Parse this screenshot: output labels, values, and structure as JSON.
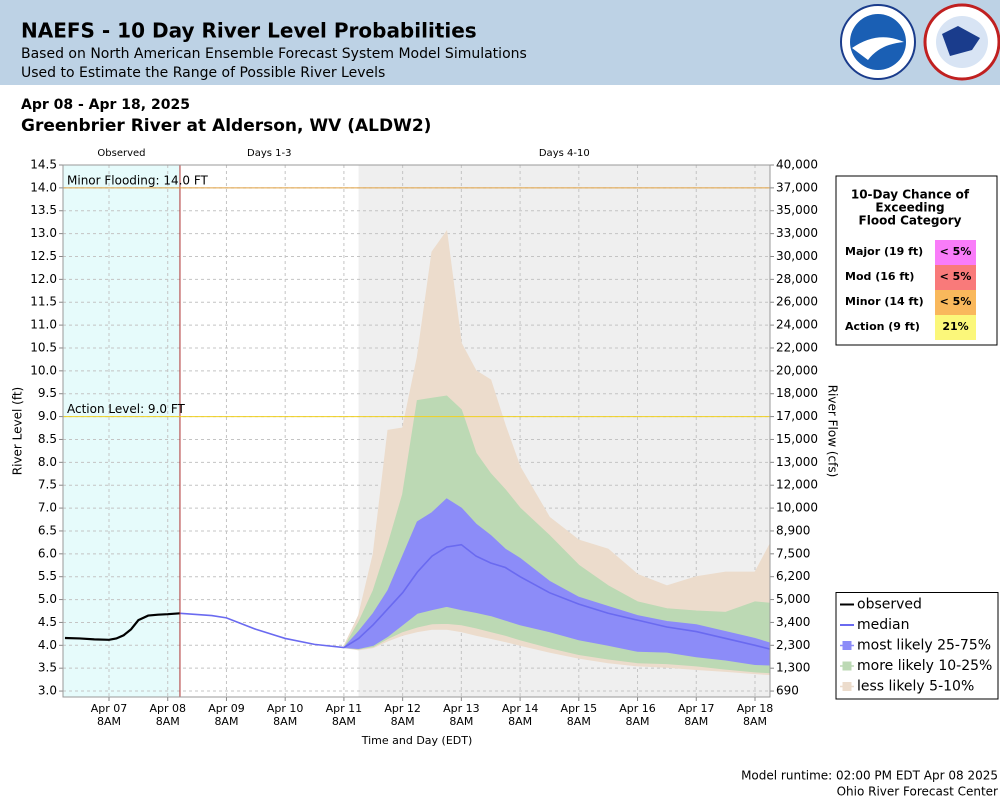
{
  "header": {
    "title": "NAEFS - 10 Day River Level Probabilities",
    "subtitle": "Based on North American Ensemble Forecast System Model Simulations",
    "subtitle2": "Used to Estimate the Range of Possible River Levels"
  },
  "date_range": "Apr 08 - Apr 18, 2025",
  "station": "Greenbrier River at Alderson, WV (ALDW2)",
  "chart_data": {
    "type": "line",
    "xlabel": "Time and Day (EDT)",
    "ylabel": "River Level (ft)",
    "y2label": "River Flow (cfs)",
    "xlim": [
      "2025-04-06T13:12",
      "2025-04-18T14:08"
    ],
    "xticks": [
      {
        "value": "2025-04-07T08:00",
        "label": [
          "Apr 07",
          "8AM"
        ]
      },
      {
        "value": "2025-04-08T08:00",
        "label": [
          "Apr 08",
          "8AM"
        ]
      },
      {
        "value": "2025-04-09T08:00",
        "label": [
          "Apr 09",
          "8AM"
        ]
      },
      {
        "value": "2025-04-10T08:00",
        "label": [
          "Apr 10",
          "8AM"
        ]
      },
      {
        "value": "2025-04-11T08:00",
        "label": [
          "Apr 11",
          "8AM"
        ]
      },
      {
        "value": "2025-04-12T08:00",
        "label": [
          "Apr 12",
          "8AM"
        ]
      },
      {
        "value": "2025-04-13T08:00",
        "label": [
          "Apr 13",
          "8AM"
        ]
      },
      {
        "value": "2025-04-14T08:00",
        "label": [
          "Apr 14",
          "8AM"
        ]
      },
      {
        "value": "2025-04-15T08:00",
        "label": [
          "Apr 15",
          "8AM"
        ]
      },
      {
        "value": "2025-04-16T08:00",
        "label": [
          "Apr 16",
          "8AM"
        ]
      },
      {
        "value": "2025-04-17T08:00",
        "label": [
          "Apr 17",
          "8AM"
        ]
      },
      {
        "value": "2025-04-18T08:00",
        "label": [
          "Apr 18",
          "8AM"
        ]
      }
    ],
    "ylim": [
      2.87,
      14.5
    ],
    "yticks": [
      {
        "value": 3,
        "label": "3.0"
      },
      3.5,
      {
        "value": 4,
        "label": "4.0"
      },
      4.5,
      {
        "value": 5,
        "label": "5.0"
      },
      5.5,
      {
        "value": 6,
        "label": "6.0"
      },
      6.5,
      {
        "value": 7,
        "label": "7.0"
      },
      7.5,
      {
        "value": 8,
        "label": "8.0"
      },
      8.5,
      {
        "value": 9,
        "label": "9.0"
      },
      9.5,
      {
        "value": 10,
        "label": "10.0"
      },
      10.5,
      {
        "value": 11,
        "label": "11.0"
      },
      11.5,
      {
        "value": 12,
        "label": "12.0"
      },
      12.5,
      {
        "value": 13,
        "label": "13.0"
      },
      13.5,
      {
        "value": 14,
        "label": "14.0"
      },
      14.5
    ],
    "y2ticks": [
      690,
      {
        "value": 1300,
        "label": "1,300"
      },
      {
        "value": 2300,
        "label": "2,300"
      },
      {
        "value": 3400,
        "label": "3,400"
      },
      {
        "value": 5000,
        "label": "5,000"
      },
      {
        "value": 6200,
        "label": "6,200"
      },
      {
        "value": 7500,
        "label": "7,500"
      },
      {
        "value": 8900,
        "label": "8,900"
      },
      {
        "value": 10000,
        "label": "10,000"
      },
      {
        "value": 12000,
        "label": "12,000"
      },
      {
        "value": 13000,
        "label": "13,000"
      },
      {
        "value": 15000,
        "label": "15,000"
      },
      {
        "value": 17000,
        "label": "17,000"
      },
      {
        "value": 18000,
        "label": "18,000"
      },
      {
        "value": 20000,
        "label": "20,000"
      },
      {
        "value": 22000,
        "label": "22,000"
      },
      {
        "value": 24000,
        "label": "24,000"
      },
      {
        "value": 26000,
        "label": "26,000"
      },
      {
        "value": 28000,
        "label": "28,000"
      },
      {
        "value": 30000,
        "label": "30,000"
      },
      {
        "value": 33000,
        "label": "33,000"
      },
      {
        "value": 35000,
        "label": "35,000"
      },
      {
        "value": 37000,
        "label": "37,000"
      },
      {
        "value": 40000,
        "label": "40,000"
      }
    ],
    "grid": true,
    "legend": "lower right",
    "regions": [
      {
        "label": "Observed",
        "end": "2025-04-08T13:00",
        "color": "#e6fbfb"
      },
      {
        "label": "Days 1-3",
        "end": "2025-04-11T14:00",
        "color": "#ffffff"
      },
      {
        "label": "Days 4-10",
        "color": "#efefef"
      }
    ],
    "now_line_color": "#b03030",
    "thresholds": [
      {
        "label": "Minor Flooding: 14.0 FT",
        "value": 14,
        "color": "#e0a040"
      },
      {
        "label": "Action Level: 9.0 FT",
        "value": 9,
        "color": "#f0d020"
      }
    ],
    "x": [
      "2025-04-06T14:00",
      "2025-04-06T20:00",
      "2025-04-07T02:00",
      "2025-04-07T08:00",
      "2025-04-07T11:00",
      "2025-04-07T14:00",
      "2025-04-07T17:00",
      "2025-04-07T20:00",
      "2025-04-08T00:00",
      "2025-04-08T04:00",
      "2025-04-08T08:00",
      "2025-04-08T13:00",
      "2025-04-09T02:00",
      "2025-04-09T08:00",
      "2025-04-09T20:00",
      "2025-04-10T08:00",
      "2025-04-10T20:00",
      "2025-04-11T08:00",
      "2025-04-11T14:00",
      "2025-04-11T20:00",
      "2025-04-12T02:00",
      "2025-04-12T08:00",
      "2025-04-12T14:00",
      "2025-04-12T20:00",
      "2025-04-13T02:00",
      "2025-04-13T08:00",
      "2025-04-13T14:00",
      "2025-04-13T20:00",
      "2025-04-14T02:00",
      "2025-04-14T08:00",
      "2025-04-14T20:00",
      "2025-04-15T08:00",
      "2025-04-15T20:00",
      "2025-04-16T08:00",
      "2025-04-16T20:00",
      "2025-04-17T08:00",
      "2025-04-17T20:00",
      "2025-04-18T08:00",
      "2025-04-18T14:00"
    ],
    "series": [
      {
        "name": "less likely 5-10%",
        "kind": "band",
        "color": "#ecdccc",
        "lower": [
          null,
          null,
          null,
          null,
          null,
          null,
          null,
          null,
          null,
          null,
          null,
          null,
          null,
          null,
          null,
          null,
          null,
          3.95,
          3.9,
          3.95,
          4.1,
          4.22,
          4.3,
          4.35,
          4.35,
          4.3,
          4.22,
          4.15,
          4.08,
          4.0,
          3.85,
          3.72,
          3.62,
          3.55,
          3.52,
          3.47,
          3.43,
          3.38,
          3.36
        ],
        "upper": [
          null,
          null,
          null,
          null,
          null,
          null,
          null,
          null,
          null,
          null,
          null,
          null,
          null,
          null,
          null,
          null,
          null,
          3.98,
          4.65,
          6.0,
          8.7,
          8.75,
          10.3,
          12.6,
          13.05,
          10.6,
          10.0,
          9.8,
          8.8,
          7.9,
          6.8,
          6.3,
          6.1,
          5.55,
          5.3,
          5.5,
          5.6,
          5.6,
          6.2
        ]
      },
      {
        "name": "more likely 10-25%",
        "kind": "band",
        "color": "#bcd9b4",
        "lower": [
          null,
          null,
          null,
          null,
          null,
          null,
          null,
          null,
          null,
          null,
          null,
          null,
          null,
          null,
          null,
          null,
          null,
          3.95,
          3.92,
          3.97,
          4.15,
          4.3,
          4.4,
          4.47,
          4.48,
          4.45,
          4.38,
          4.3,
          4.22,
          4.12,
          3.95,
          3.8,
          3.7,
          3.62,
          3.6,
          3.55,
          3.48,
          3.42,
          3.4
        ],
        "upper": [
          null,
          null,
          null,
          null,
          null,
          null,
          null,
          null,
          null,
          null,
          null,
          null,
          null,
          null,
          null,
          null,
          null,
          3.95,
          4.5,
          5.2,
          6.2,
          7.3,
          9.35,
          9.4,
          9.45,
          9.15,
          8.2,
          7.75,
          7.4,
          7.0,
          6.4,
          5.75,
          5.3,
          4.95,
          4.8,
          4.75,
          4.72,
          4.95,
          4.92
        ]
      },
      {
        "name": "most likely 25-75%",
        "kind": "band",
        "color": "#8c8cf8",
        "lower": [
          null,
          null,
          null,
          null,
          null,
          null,
          null,
          null,
          null,
          null,
          null,
          null,
          null,
          null,
          null,
          null,
          null,
          3.95,
          3.93,
          4.0,
          4.2,
          4.45,
          4.7,
          4.78,
          4.85,
          4.78,
          4.72,
          4.65,
          4.55,
          4.45,
          4.3,
          4.12,
          4.0,
          3.87,
          3.85,
          3.75,
          3.68,
          3.58,
          3.57
        ],
        "upper": [
          null,
          null,
          null,
          null,
          null,
          null,
          null,
          null,
          null,
          null,
          null,
          null,
          null,
          null,
          null,
          null,
          null,
          3.95,
          4.3,
          4.7,
          5.2,
          5.95,
          6.7,
          6.9,
          7.2,
          7.0,
          6.65,
          6.4,
          6.1,
          5.9,
          5.4,
          5.05,
          4.85,
          4.65,
          4.52,
          4.45,
          4.3,
          4.15,
          4.05
        ]
      },
      {
        "name": "median",
        "kind": "line",
        "color": "#6a6af0",
        "values": [
          null,
          null,
          null,
          null,
          null,
          null,
          null,
          null,
          null,
          null,
          null,
          4.7,
          4.65,
          4.6,
          4.35,
          4.15,
          4.02,
          3.95,
          4.15,
          4.45,
          4.8,
          5.15,
          5.6,
          5.95,
          6.15,
          6.2,
          5.95,
          5.8,
          5.7,
          5.5,
          5.15,
          4.9,
          4.7,
          4.55,
          4.4,
          4.3,
          4.15,
          4.0,
          3.92
        ]
      },
      {
        "name": "observed",
        "kind": "line",
        "color": "#000000",
        "values": [
          4.16,
          4.15,
          4.13,
          4.12,
          4.15,
          4.22,
          4.35,
          4.55,
          4.65,
          4.67,
          4.68,
          4.7,
          null,
          null,
          null,
          null,
          null,
          null,
          null,
          null,
          null,
          null,
          null,
          null,
          null,
          null,
          null,
          null,
          null,
          null,
          null,
          null,
          null,
          null,
          null,
          null,
          null,
          null,
          null
        ]
      }
    ],
    "legend_order": [
      4,
      3,
      2,
      1,
      0
    ]
  },
  "probability_table": {
    "title": [
      "10-Day Chance of",
      "Exceeding",
      "Flood Category"
    ],
    "rows": [
      {
        "category": "Major (19 ft)",
        "chance": "< 5%",
        "color": "#f97cf9"
      },
      {
        "category": "Mod (16 ft)",
        "chance": "< 5%",
        "color": "#f97a7a"
      },
      {
        "category": "Minor (14 ft)",
        "chance": "< 5%",
        "color": "#f9b85c"
      },
      {
        "category": "Action (9 ft)",
        "chance": "21%",
        "color": "#fbf77a"
      }
    ]
  },
  "footer": {
    "runtime": "Model runtime: 02:00 PM EDT Apr 08 2025",
    "center": "Ohio River Forecast Center"
  }
}
